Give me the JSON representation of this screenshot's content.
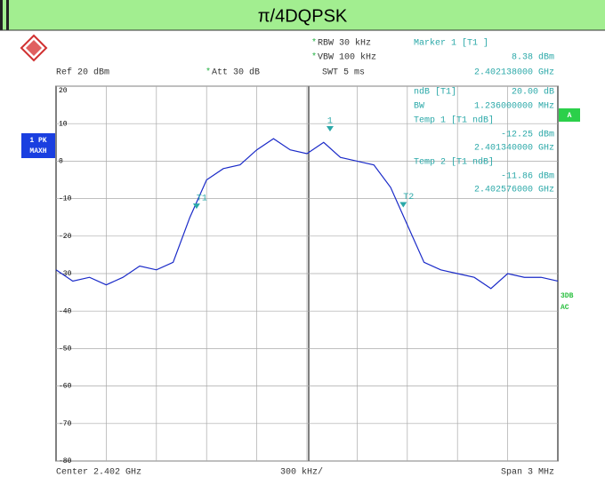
{
  "chart_data": {
    "type": "line",
    "title": "π/4DQPSK",
    "xlim": [
      2.4005,
      2.4035
    ],
    "ylim": [
      -80,
      20
    ],
    "yticks": [
      20,
      10,
      0,
      -10,
      -20,
      -30,
      -40,
      -50,
      -60,
      -70,
      -80
    ],
    "grid": true,
    "x": [
      2.4005,
      2.4006,
      2.4007,
      2.4008,
      2.4009,
      2.401,
      2.4011,
      2.4012,
      2.4013,
      2.4014,
      2.4015,
      2.4016,
      2.4017,
      2.4018,
      2.4019,
      2.402,
      2.4021,
      2.4022,
      2.4023,
      2.4024,
      2.4025,
      2.4026,
      2.4027,
      2.4028,
      2.4029,
      2.403,
      2.4031,
      2.4032,
      2.4033,
      2.4034,
      2.4035
    ],
    "series": [
      {
        "name": "1 PK MAXH",
        "color": "#1a2ac8",
        "values": [
          -29,
          -32,
          -31,
          -33,
          -31,
          -28,
          -29,
          -27,
          -15,
          -5,
          -2,
          -1,
          3,
          6,
          3,
          2,
          5,
          1,
          0,
          -1,
          -7,
          -17,
          -27,
          -29,
          -30,
          -31,
          -34,
          -30,
          -31,
          -31,
          -32
        ]
      }
    ],
    "markers": [
      {
        "label": "1",
        "x": 2.402138,
        "y": 8.38
      },
      {
        "label": "T1",
        "x": 2.40134,
        "y": -12.25
      },
      {
        "label": "T2",
        "x": 2.402576,
        "y": -11.86
      }
    ],
    "side_labels": {
      "trace": [
        "1 PK",
        "MAXH"
      ],
      "a": "A",
      "mode": [
        "3DB",
        "AC"
      ]
    },
    "annotations": [
      {
        "text": "Ref  20 dBm"
      },
      {
        "text": "Att  30 dB",
        "flag": "*"
      },
      {
        "text": "RBW 30 kHz",
        "flag": "*"
      },
      {
        "text": "VBW 100 kHz",
        "flag": "*"
      },
      {
        "text": "SWT 5 ms"
      },
      {
        "text": "Marker 1 [T1 ]"
      },
      {
        "text": "8.38 dBm"
      },
      {
        "text": "2.402138000 GHz"
      },
      {
        "text": "ndB [T1]"
      },
      {
        "text": "20.00 dB"
      },
      {
        "text": "BW"
      },
      {
        "text": "1.236000000 MHz"
      },
      {
        "text": "Temp 1 [T1 ndB]"
      },
      {
        "text": "-12.25 dBm"
      },
      {
        "text": "2.401340000 GHz"
      },
      {
        "text": "Temp 2 [T1 ndB]"
      },
      {
        "text": "-11.86 dBm"
      },
      {
        "text": "2.402576000 GHz"
      },
      {
        "text": "Center 2.402 GHz"
      },
      {
        "text": "300 kHz/"
      },
      {
        "text": "Span 3 MHz"
      }
    ]
  }
}
